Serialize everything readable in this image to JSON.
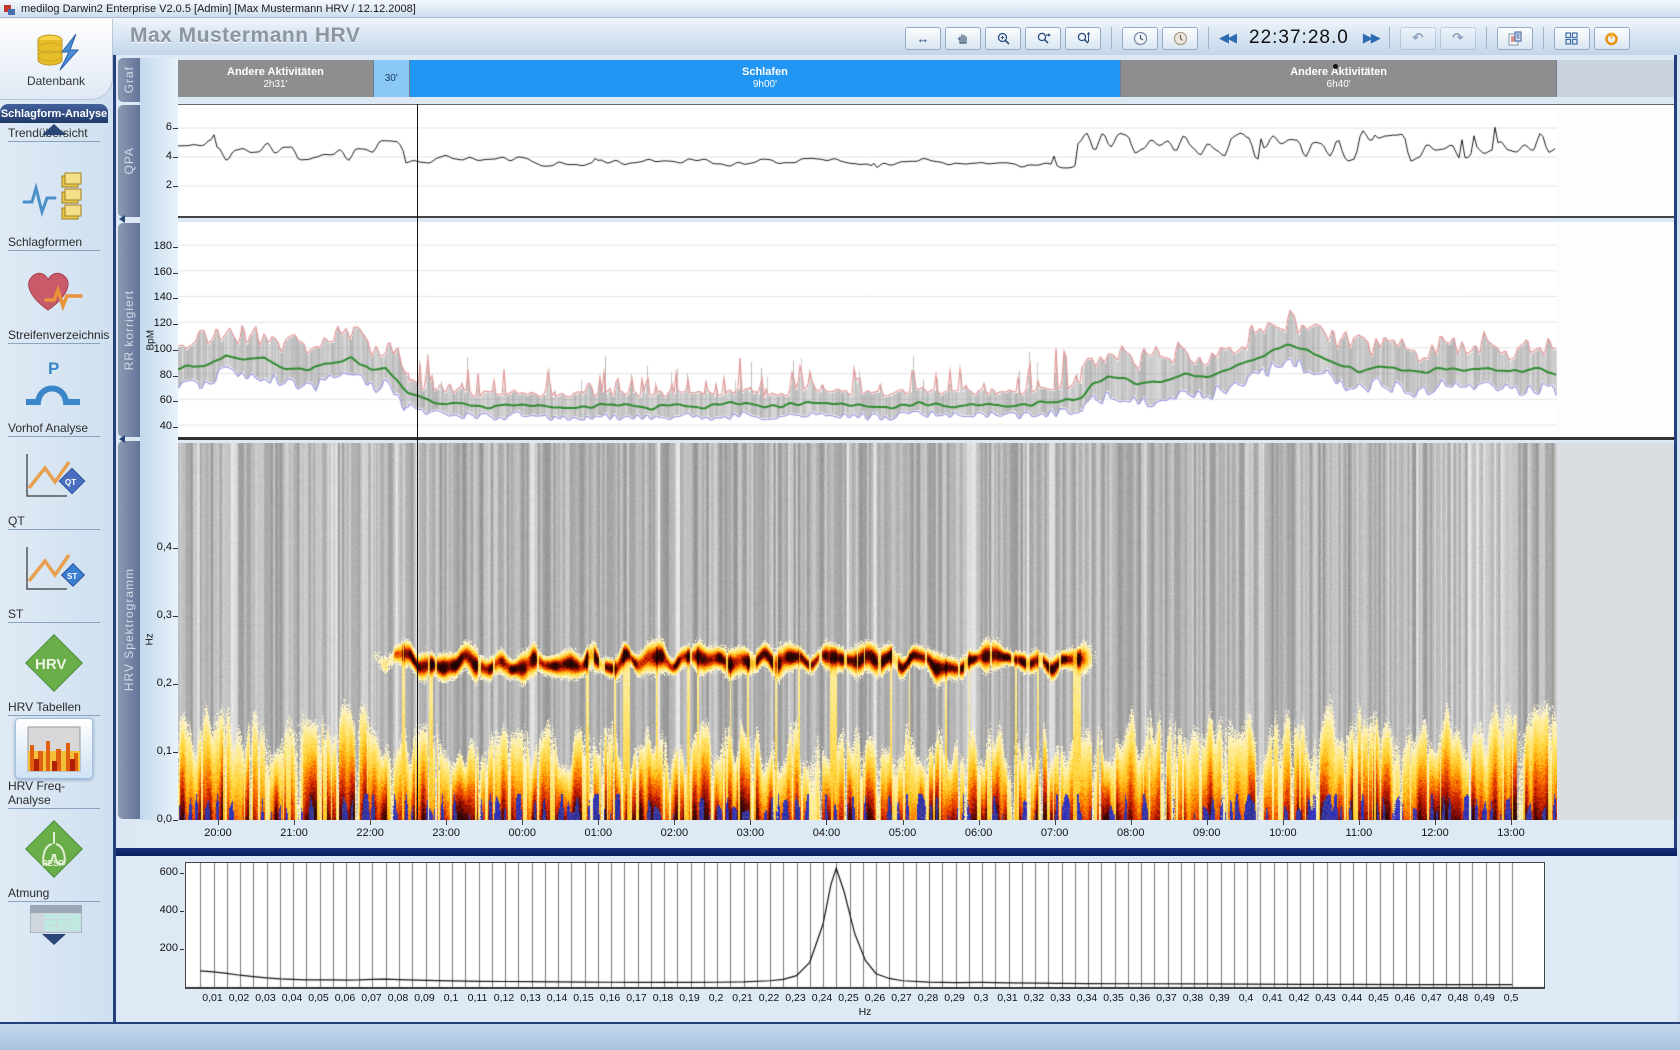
{
  "window": {
    "title": "medilog Darwin2 Enterprise V2.0.5 [Admin]  [Max Mustermann HRV / 12.12.2008]"
  },
  "header": {
    "patient_title": "Max Mustermann HRV",
    "time_display": "22:37:28.0",
    "toolbar": {
      "cursor_glyph": "↔",
      "back_glyph": "◀◀",
      "fwd_glyph": "▶▶",
      "undo_glyph": "↶",
      "redo_glyph": "↷"
    }
  },
  "sidebar": {
    "top_item": {
      "label": "Datenbank"
    },
    "section_header": "Schlagform-Analyse",
    "items": [
      {
        "label": "Trendübersicht",
        "icon": "trend-icon"
      },
      {
        "label": "Schlagformen",
        "icon": "beat-shapes-icon"
      },
      {
        "label": "Streifenverzeichnis",
        "icon": "strips-icon"
      },
      {
        "label": "Vorhof Analyse",
        "icon": "atrial-p-icon"
      },
      {
        "label": "QT",
        "icon": "qt-icon"
      },
      {
        "label": "ST",
        "icon": "st-icon"
      },
      {
        "label": "HRV Tabellen",
        "icon": "hrv-diamond-icon"
      },
      {
        "label": "HRV Freq-Analyse",
        "icon": "hrv-freq-icon",
        "selected": true
      },
      {
        "label": "Atmung",
        "icon": "resp-icon"
      }
    ]
  },
  "panel_tabs": [
    "Graf",
    "QPA",
    "RR korrigiert",
    "HRV Spektrogramm"
  ],
  "activity_band": {
    "segments": [
      {
        "label": "Andere Aktivitäten",
        "duration": "2h31'",
        "type": "other",
        "width_pct": 14.2
      },
      {
        "label": "",
        "duration": "30'",
        "type": "transition",
        "width_pct": 2.6
      },
      {
        "label": "Schlafen",
        "duration": "9h00'",
        "type": "sleep",
        "width_pct": 51.6
      },
      {
        "label": "Andere Aktivitäten",
        "duration": "6h40'",
        "type": "other",
        "width_pct": 31.6
      }
    ]
  },
  "colors": {
    "sleep": "#2196f3",
    "transition": "#8ac9f5",
    "other": "#8e8e8e",
    "rr_max": "#e59a9a",
    "rr_mean": "#2d8a2d",
    "rr_min": "#9a9ae0",
    "rr_raw": "#b8b8b8",
    "accent_navy": "#23407c"
  },
  "cursor": {
    "time": "22:37:28.0",
    "hour_decimal": 22.624
  },
  "chart_data": [
    {
      "id": "qpa",
      "type": "line",
      "title": "QPA",
      "x_unit": "time of day",
      "x_range_hours": [
        19.47,
        37.6
      ],
      "ylim": [
        0.5,
        7.8
      ],
      "yticks": [
        6,
        4,
        2
      ],
      "grid": true,
      "segments": [
        {
          "t0": 19.47,
          "t1": 22.45,
          "base": 4.7,
          "noise": 0.85,
          "spike_amp": 2.3,
          "spike_prob": 0.1
        },
        {
          "t0": 22.45,
          "t1": 31.3,
          "base": 3.7,
          "noise": 0.2,
          "spike_amp": 0.8,
          "spike_prob": 0.05
        },
        {
          "t0": 31.3,
          "t1": 37.6,
          "base": 4.9,
          "noise": 1.0,
          "spike_amp": 2.4,
          "spike_prob": 0.12
        }
      ]
    },
    {
      "id": "rr_korrigiert",
      "type": "line",
      "title": "RR korrigiert",
      "ylabel": "BpM",
      "ylim": [
        30,
        190
      ],
      "yticks": [
        180,
        160,
        140,
        120,
        100,
        80,
        60,
        40
      ],
      "grid": true,
      "sleep_window_hours": [
        22.5,
        31.35
      ],
      "series": [
        {
          "name": "raw-band",
          "color": "#b8b8b8",
          "desc": "noisy beat-to-beat band around mean"
        },
        {
          "name": "max-envelope",
          "color": "#e59a9a",
          "offset_wake": 28,
          "spike_sleep": 34
        },
        {
          "name": "mean",
          "color": "#2d8a2d"
        },
        {
          "name": "min-envelope",
          "color": "#9a9ae0",
          "offset": -13,
          "floor": 44
        }
      ],
      "mean_points": [
        [
          19.5,
          84
        ],
        [
          19.9,
          88
        ],
        [
          20.1,
          95
        ],
        [
          20.35,
          90
        ],
        [
          20.6,
          92
        ],
        [
          20.9,
          84
        ],
        [
          21.2,
          83
        ],
        [
          21.5,
          88
        ],
        [
          21.75,
          92
        ],
        [
          22.0,
          82
        ],
        [
          22.2,
          84
        ],
        [
          22.35,
          76
        ],
        [
          22.5,
          64
        ],
        [
          22.8,
          58
        ],
        [
          23.2,
          56
        ],
        [
          23.6,
          54
        ],
        [
          24.0,
          56
        ],
        [
          24.4,
          53
        ],
        [
          24.8,
          54
        ],
        [
          25.2,
          56
        ],
        [
          25.6,
          53
        ],
        [
          26.0,
          55
        ],
        [
          26.4,
          54
        ],
        [
          26.8,
          57
        ],
        [
          27.2,
          54
        ],
        [
          27.6,
          56
        ],
        [
          28.0,
          58
        ],
        [
          28.4,
          55
        ],
        [
          28.8,
          54
        ],
        [
          29.2,
          57
        ],
        [
          29.6,
          55
        ],
        [
          30.0,
          56
        ],
        [
          30.4,
          55
        ],
        [
          30.8,
          57
        ],
        [
          31.1,
          58
        ],
        [
          31.35,
          62
        ],
        [
          31.5,
          72
        ],
        [
          31.7,
          78
        ],
        [
          31.9,
          76
        ],
        [
          32.1,
          72
        ],
        [
          32.4,
          75
        ],
        [
          32.7,
          79
        ],
        [
          33.0,
          77
        ],
        [
          33.3,
          84
        ],
        [
          33.6,
          90
        ],
        [
          33.9,
          98
        ],
        [
          34.05,
          102
        ],
        [
          34.25,
          99
        ],
        [
          34.5,
          94
        ],
        [
          34.75,
          87
        ],
        [
          35.0,
          81
        ],
        [
          35.25,
          85
        ],
        [
          35.5,
          83
        ],
        [
          35.8,
          80
        ],
        [
          36.1,
          85
        ],
        [
          36.4,
          82
        ],
        [
          36.7,
          84
        ],
        [
          37.0,
          81
        ],
        [
          37.3,
          84
        ],
        [
          37.6,
          80
        ]
      ]
    },
    {
      "id": "hrv_spektrogramm",
      "type": "heatmap",
      "title": "HRV Spektrogramm",
      "ylabel": "Hz",
      "ylim": [
        0,
        0.558
      ],
      "yticks": [
        "0,4",
        "0,3",
        "0,2",
        "0,1",
        "0,0"
      ],
      "time_ticks": [
        "20:00",
        "21:00",
        "22:00",
        "23:00",
        "00:00",
        "01:00",
        "02:00",
        "03:00",
        "04:00",
        "05:00",
        "06:00",
        "07:00",
        "08:00",
        "09:00",
        "10:00",
        "11:00",
        "12:00",
        "13:00"
      ],
      "features": {
        "background": "gray with vertical streaks",
        "lf_power_band": {
          "f_range": [
            0,
            0.16
          ],
          "desc": "intense yellow/orange/red power over whole recording"
        },
        "hf_sleep_band": {
          "f_center": 0.24,
          "wander": 0.015,
          "t_window_hours": [
            21.9,
            31.6
          ],
          "desc": "dark red respiratory band during sleep"
        },
        "blue_patches": {
          "f_range": [
            0,
            0.045
          ]
        }
      }
    },
    {
      "id": "spektrum",
      "type": "line",
      "xlabel": "Hz",
      "xlim": [
        0,
        0.505
      ],
      "ylim": [
        0,
        660
      ],
      "yticks": [
        600,
        400,
        200
      ],
      "x_gridline_step": 0.005,
      "peak": {
        "f": 0.245,
        "value": 625
      },
      "xtick_labels": [
        "0,01",
        "0,02",
        "0,03",
        "0,04",
        "0,05",
        "0,06",
        "0,07",
        "0,08",
        "0,09",
        "0,1",
        "0,11",
        "0,12",
        "0,13",
        "0,14",
        "0,15",
        "0,16",
        "0,17",
        "0,18",
        "0,19",
        "0,2",
        "0,21",
        "0,22",
        "0,23",
        "0,24",
        "0,25",
        "0,26",
        "0,27",
        "0,28",
        "0,29",
        "0,3",
        "0,31",
        "0,32",
        "0,33",
        "0,34",
        "0,35",
        "0,36",
        "0,37",
        "0,38",
        "0,39",
        "0,4",
        "0,41",
        "0,42",
        "0,43",
        "0,44",
        "0,45",
        "0,46",
        "0,47",
        "0,48",
        "0,49",
        "0,5"
      ],
      "points": [
        [
          0.005,
          85
        ],
        [
          0.01,
          80
        ],
        [
          0.015,
          72
        ],
        [
          0.02,
          62
        ],
        [
          0.025,
          55
        ],
        [
          0.03,
          48
        ],
        [
          0.035,
          43
        ],
        [
          0.04,
          40
        ],
        [
          0.045,
          38
        ],
        [
          0.05,
          38
        ],
        [
          0.055,
          37
        ],
        [
          0.06,
          36
        ],
        [
          0.065,
          37
        ],
        [
          0.07,
          40
        ],
        [
          0.075,
          41
        ],
        [
          0.08,
          39
        ],
        [
          0.09,
          35
        ],
        [
          0.1,
          32
        ],
        [
          0.11,
          30
        ],
        [
          0.12,
          29
        ],
        [
          0.13,
          28
        ],
        [
          0.14,
          27
        ],
        [
          0.15,
          26
        ],
        [
          0.16,
          25
        ],
        [
          0.17,
          24
        ],
        [
          0.18,
          24
        ],
        [
          0.19,
          24
        ],
        [
          0.2,
          25
        ],
        [
          0.21,
          27
        ],
        [
          0.22,
          33
        ],
        [
          0.225,
          40
        ],
        [
          0.23,
          60
        ],
        [
          0.235,
          130
        ],
        [
          0.24,
          330
        ],
        [
          0.243,
          540
        ],
        [
          0.245,
          625
        ],
        [
          0.248,
          500
        ],
        [
          0.252,
          280
        ],
        [
          0.256,
          140
        ],
        [
          0.26,
          70
        ],
        [
          0.265,
          45
        ],
        [
          0.27,
          33
        ],
        [
          0.28,
          26
        ],
        [
          0.29,
          23
        ],
        [
          0.3,
          24
        ],
        [
          0.31,
          22
        ],
        [
          0.32,
          20
        ],
        [
          0.33,
          19
        ],
        [
          0.34,
          18
        ],
        [
          0.36,
          17
        ],
        [
          0.38,
          16
        ],
        [
          0.4,
          15
        ],
        [
          0.42,
          14
        ],
        [
          0.44,
          14
        ],
        [
          0.46,
          13
        ],
        [
          0.48,
          13
        ],
        [
          0.5,
          12
        ]
      ]
    }
  ]
}
